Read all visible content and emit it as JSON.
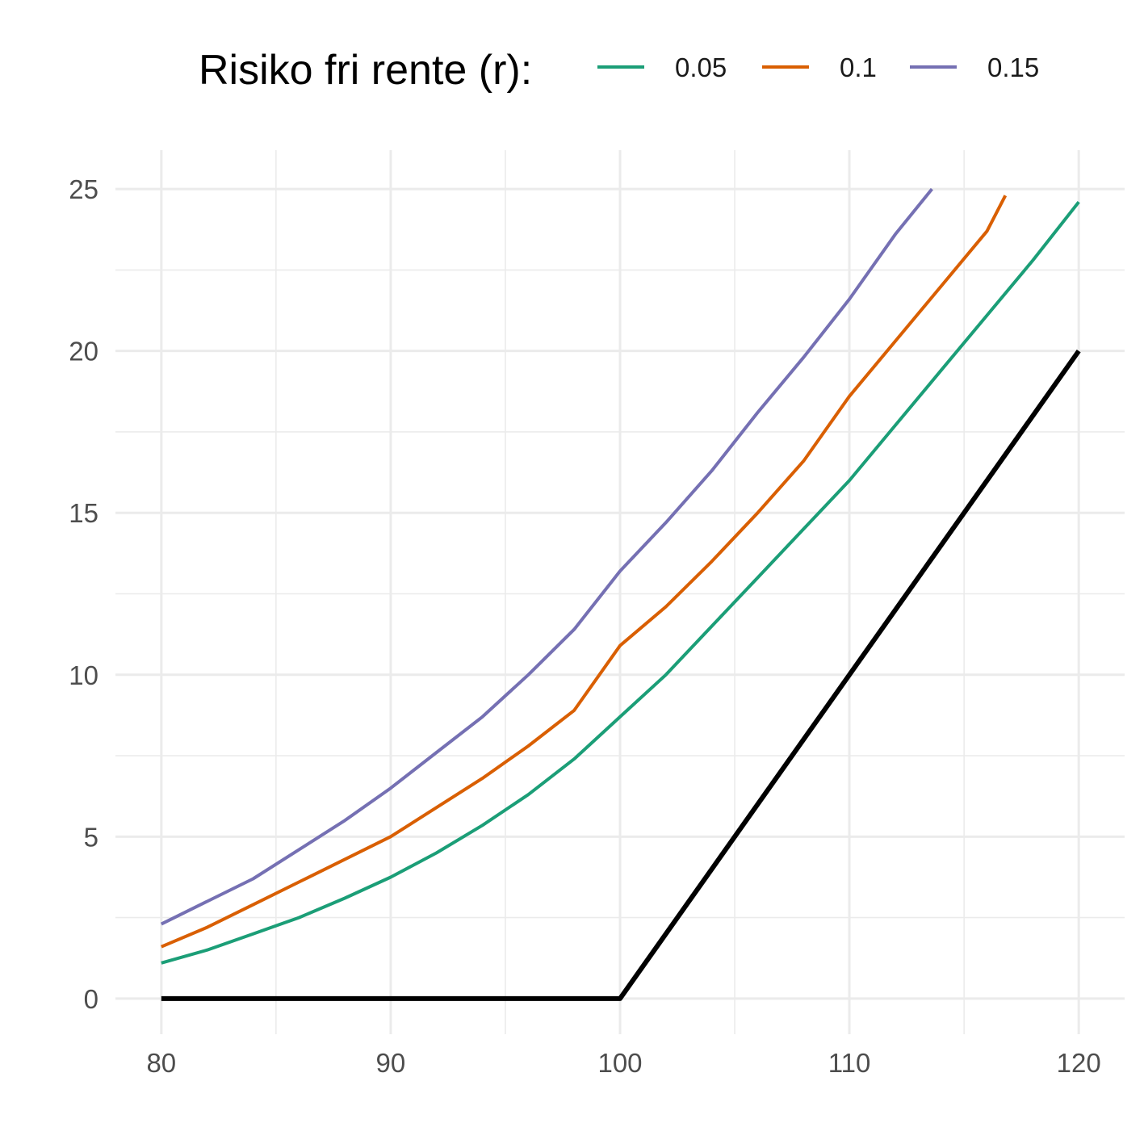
{
  "chart_data": {
    "type": "line",
    "title": "",
    "xlabel": "",
    "ylabel": "",
    "xlim": [
      78,
      122
    ],
    "ylim": [
      -1.1,
      26.2
    ],
    "x_ticks": [
      80,
      90,
      100,
      110,
      120
    ],
    "y_ticks": [
      0,
      5,
      10,
      15,
      20,
      25
    ],
    "x_tick_labels": [
      "80",
      "90",
      "100",
      "110",
      "120"
    ],
    "y_tick_labels": [
      "0",
      "5",
      "10",
      "15",
      "20",
      "25"
    ],
    "grid": true,
    "legend": {
      "title": "Risiko fri rente (r):",
      "position": "top"
    },
    "series": [
      {
        "name": "0.05",
        "color": "#1b9e77",
        "x": [
          80,
          82,
          84,
          86,
          88,
          90,
          92,
          94,
          96,
          98,
          100,
          102,
          104,
          106,
          108,
          110,
          112,
          114,
          116,
          118,
          120
        ],
        "y": [
          1.1,
          1.5,
          2.0,
          2.5,
          3.1,
          3.75,
          4.5,
          5.35,
          6.3,
          7.4,
          8.7,
          10.0,
          11.5,
          13.0,
          14.5,
          16.0,
          17.7,
          19.4,
          21.1,
          22.8,
          24.6
        ]
      },
      {
        "name": "0.1",
        "color": "#d95f02",
        "x": [
          80,
          82,
          84,
          86,
          88,
          90,
          92,
          94,
          96,
          98,
          100,
          102,
          104,
          106,
          108,
          110,
          112,
          114,
          116,
          116.8
        ],
        "y": [
          1.6,
          2.2,
          2.9,
          3.6,
          4.3,
          5.0,
          5.9,
          6.8,
          7.8,
          8.9,
          10.9,
          12.1,
          13.5,
          15.0,
          16.6,
          18.6,
          20.3,
          22.0,
          23.7,
          24.8
        ]
      },
      {
        "name": "0.15",
        "color": "#7570b3",
        "x": [
          80,
          82,
          84,
          86,
          88,
          90,
          92,
          94,
          96,
          98,
          100,
          102,
          104,
          106,
          108,
          110,
          112,
          113.6
        ],
        "y": [
          2.3,
          3.0,
          3.7,
          4.6,
          5.5,
          6.5,
          7.6,
          8.7,
          10.0,
          11.4,
          13.2,
          14.7,
          16.3,
          18.1,
          19.8,
          21.6,
          23.6,
          25.0
        ]
      },
      {
        "color": "#000000",
        "x": [
          80,
          100,
          120
        ],
        "y": [
          0,
          0,
          20
        ]
      }
    ]
  }
}
